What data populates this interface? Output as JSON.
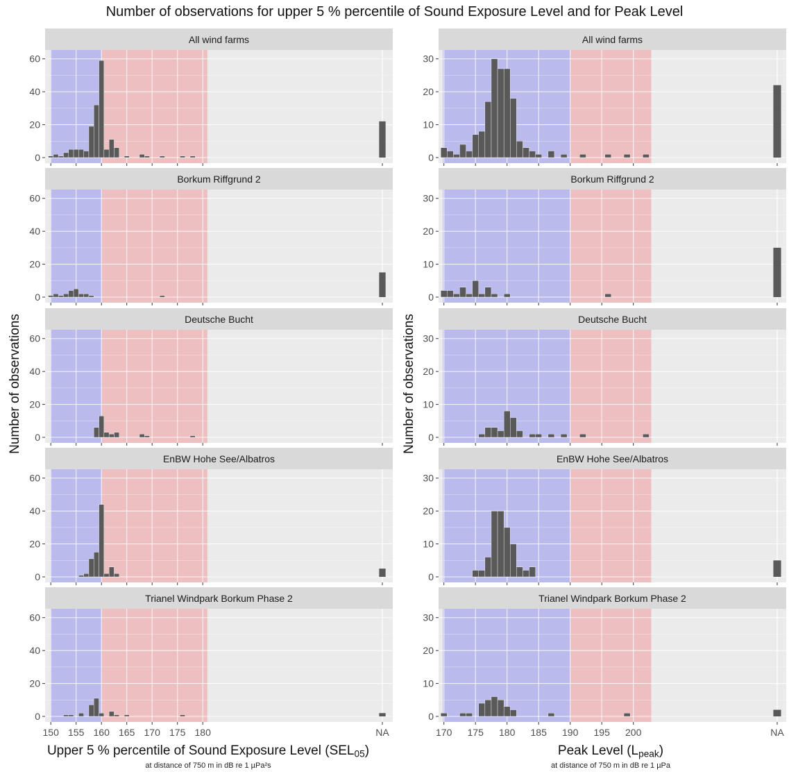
{
  "title": "Number of observations for upper 5 % percentile of Sound Exposure Level and for Peak Level",
  "y_axis_label": "Number of observations",
  "colors": {
    "panel_bg": "#EBEBEB",
    "strip_bg": "#D9D9D9",
    "grid": "#FFFFFF",
    "bar": "#595959",
    "below_threshold_fill": "#B3B3EC",
    "above_threshold_fill": "#EDB8B9"
  },
  "left_axis": {
    "title_main": "Upper 5 % percentile of Sound Exposure Level (SEL",
    "title_sub": "05",
    "title_end": ")",
    "subtitle": "at distance of 750 m in dB re 1 µPa²s"
  },
  "right_axis": {
    "title_main": "Peak Level (L",
    "title_sub": "peak",
    "title_end": ")",
    "subtitle": "at distance of 750 m in dB re 1 µPa"
  },
  "chart_data": [
    {
      "type": "bar",
      "variable": "SEL05",
      "x_ticks": [
        150,
        155,
        160,
        165,
        170,
        175,
        180
      ],
      "x_tick_labels": [
        "150",
        "155",
        "160",
        "165",
        "170",
        "175",
        "180"
      ],
      "na_label": "NA",
      "ylim": [
        0,
        62
      ],
      "y_ticks": [
        0,
        20,
        40,
        60
      ],
      "y_tick_labels": [
        "0",
        "20",
        "40",
        "60"
      ],
      "threshold_regions": [
        {
          "from": 150,
          "to": 160,
          "color": "#B3B3EC"
        },
        {
          "from": 160,
          "to": 181,
          "color": "#EDB8B9"
        }
      ],
      "panels": [
        {
          "strip": "All wind farms",
          "x": [
            150,
            151,
            152,
            153,
            154,
            155,
            156,
            157,
            158,
            159,
            160,
            161,
            162,
            163,
            165,
            168,
            169,
            172,
            176,
            178
          ],
          "values": [
            1,
            2,
            1,
            3,
            5,
            5,
            5,
            4,
            19,
            32,
            59,
            5,
            11,
            6,
            1,
            2,
            1,
            1,
            1,
            1
          ],
          "na": 22
        },
        {
          "strip": "Borkum Riffgrund 2",
          "x": [
            150,
            151,
            152,
            153,
            154,
            155,
            156,
            157,
            158,
            172
          ],
          "values": [
            1,
            2,
            1,
            2,
            4,
            5,
            2,
            2,
            1,
            1
          ],
          "na": 15
        },
        {
          "strip": "Deutsche Bucht",
          "x": [
            159,
            160,
            161,
            162,
            163,
            168,
            169,
            178
          ],
          "values": [
            6,
            13,
            3,
            2,
            3,
            2,
            1,
            1
          ],
          "na": 0
        },
        {
          "strip": "EnBW Hohe See/Albatros",
          "x": [
            156,
            157,
            158,
            159,
            160,
            161,
            162,
            163
          ],
          "values": [
            1,
            2,
            11,
            15,
            44,
            2,
            6,
            2
          ],
          "na": 5
        },
        {
          "strip": "Trianel Windpark Borkum Phase 2",
          "x": [
            153,
            154,
            156,
            158,
            159,
            160,
            162,
            163,
            165,
            176
          ],
          "values": [
            1,
            1,
            2,
            7,
            11,
            2,
            3,
            1,
            1,
            1
          ],
          "na": 2
        }
      ]
    },
    {
      "type": "bar",
      "variable": "Lpeak",
      "x_ticks": [
        170,
        175,
        180,
        185,
        190,
        195,
        200
      ],
      "x_tick_labels": [
        "170",
        "175",
        "180",
        "185",
        "190",
        "195",
        "200"
      ],
      "na_label": "NA",
      "ylim": [
        0,
        31
      ],
      "y_ticks": [
        0,
        10,
        20,
        30
      ],
      "y_tick_labels": [
        "0",
        "10",
        "20",
        "30"
      ],
      "threshold_regions": [
        {
          "from": 170,
          "to": 190,
          "color": "#B3B3EC"
        },
        {
          "from": 190,
          "to": 203,
          "color": "#EDB8B9"
        }
      ],
      "panels": [
        {
          "strip": "All wind farms",
          "x": [
            170,
            171,
            172,
            173,
            174,
            175,
            176,
            177,
            178,
            179,
            180,
            181,
            182,
            183,
            184,
            185,
            187,
            189,
            192,
            196,
            199,
            202
          ],
          "values": [
            3,
            2,
            1,
            4,
            2,
            7,
            8,
            17,
            30,
            27,
            27,
            18,
            5,
            3,
            2,
            1,
            2,
            1,
            1,
            1,
            1,
            1
          ],
          "na": 22
        },
        {
          "strip": "Borkum Riffgrund 2",
          "x": [
            170,
            171,
            172,
            173,
            174,
            175,
            176,
            177,
            178,
            180,
            196
          ],
          "values": [
            2,
            2,
            1,
            3,
            1,
            5,
            1,
            3,
            1,
            1,
            1
          ],
          "na": 15
        },
        {
          "strip": "Deutsche Bucht",
          "x": [
            176,
            177,
            178,
            179,
            180,
            181,
            182,
            184,
            185,
            187,
            189,
            192,
            202
          ],
          "values": [
            1,
            3,
            3,
            2,
            8,
            6,
            2,
            1,
            1,
            1,
            1,
            1,
            1
          ],
          "na": 0
        },
        {
          "strip": "EnBW Hohe See/Albatros",
          "x": [
            175,
            176,
            177,
            178,
            179,
            180,
            181,
            182,
            183,
            184
          ],
          "values": [
            2,
            2,
            6,
            20,
            20,
            15,
            10,
            3,
            2,
            3
          ],
          "na": 5
        },
        {
          "strip": "Trianel Windpark Borkum Phase 2",
          "x": [
            170,
            173,
            174,
            176,
            177,
            178,
            179,
            180,
            181,
            187,
            199
          ],
          "values": [
            1,
            1,
            1,
            4,
            5,
            6,
            5,
            3,
            2,
            1,
            1
          ],
          "na": 2
        }
      ]
    }
  ]
}
